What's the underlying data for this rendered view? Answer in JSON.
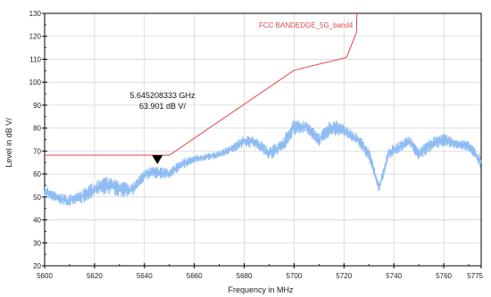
{
  "colors": {
    "limit": "#e2454d",
    "trace": "#8fbcf2",
    "grid": "#d7d7d7",
    "axis": "#000000",
    "marker": "#000000"
  },
  "marker": {
    "freq_line": "5.645208333 GHz",
    "level_line": "63.901 dB   V/",
    "x": 5645.2,
    "y": 63.9
  },
  "chart_data": {
    "type": "line",
    "title": "",
    "xlabel": "Frequency in MHz",
    "ylabel": "Level in dB   V/",
    "xlim": [
      5600,
      5775
    ],
    "ylim": [
      20,
      130
    ],
    "x_ticks": [
      5600,
      5620,
      5640,
      5660,
      5680,
      5700,
      5720,
      5740,
      5760,
      5775
    ],
    "y_ticks": [
      20,
      30,
      40,
      50,
      60,
      70,
      80,
      90,
      100,
      110,
      120,
      130
    ],
    "grid": true,
    "limit_label": "FCC BANDEDGE_5G_band4",
    "series": [
      {
        "name": "FCC BANDEDGE_5G_band4",
        "style": "limit-line",
        "x": [
          5600,
          5650,
          5700,
          5721,
          5725,
          5725.2
        ],
        "y": [
          68.2,
          68.2,
          105.2,
          110.8,
          121.7,
          130
        ]
      },
      {
        "style": "measurement-envelope",
        "x": [
          5600,
          5605,
          5610,
          5615,
          5620,
          5625,
          5630,
          5635,
          5640,
          5645,
          5650,
          5655,
          5660,
          5665,
          5670,
          5675,
          5680,
          5685,
          5690,
          5695,
          5700,
          5705,
          5710,
          5715,
          5720,
          5725,
          5730,
          5734,
          5738,
          5742,
          5746,
          5750,
          5755,
          5760,
          5765,
          5770,
          5775
        ],
        "y_low": [
          50,
          47,
          46,
          47,
          50,
          51,
          50,
          50,
          57,
          58,
          58,
          62,
          65,
          66,
          67,
          69,
          72,
          71,
          66,
          69,
          77,
          78,
          72,
          77,
          76,
          73,
          66,
          52,
          66,
          69,
          72,
          66,
          70,
          72,
          71,
          70,
          62
        ],
        "y_high": [
          55,
          52,
          51,
          53,
          57,
          59,
          57,
          56,
          62,
          64,
          62,
          67,
          68,
          69,
          70,
          73,
          77,
          76,
          72,
          75,
          84,
          83,
          78,
          84,
          82,
          78,
          72,
          56,
          72,
          74,
          77,
          71,
          76,
          78,
          75,
          75,
          68
        ]
      }
    ]
  }
}
